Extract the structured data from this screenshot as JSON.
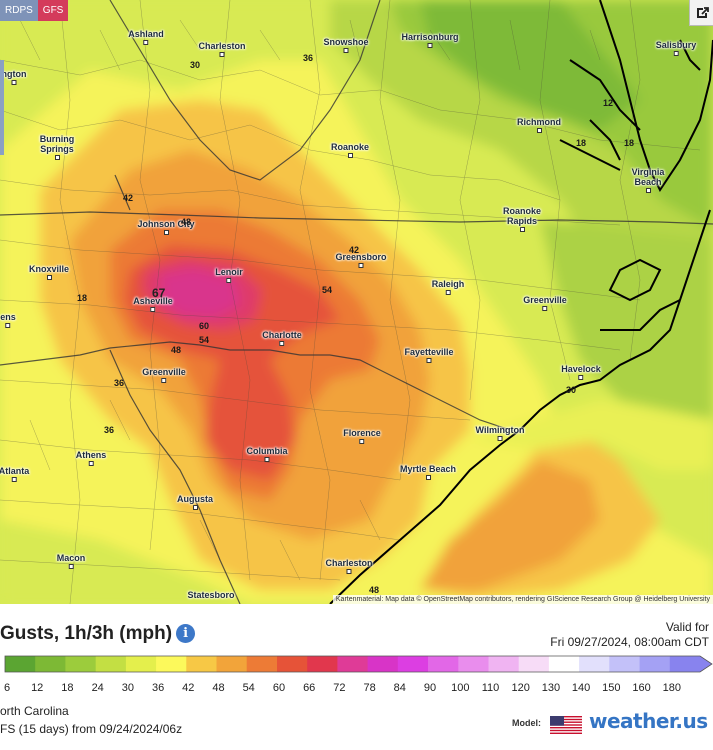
{
  "model_tabs": [
    {
      "label": "RDPS",
      "color": "#7e93b8"
    },
    {
      "label": "GFS",
      "color": "#d43b5b",
      "active": true
    }
  ],
  "share_icon": "share-arrow-icon",
  "attribution": "Kartenmaterial: Map data © OpenStreetMap contributors, rendering GIScience Research Group @ Heidelberg University",
  "cities": [
    {
      "key": "ashland",
      "label": "Ashland"
    },
    {
      "key": "charleston_wv",
      "label": "Charleston"
    },
    {
      "key": "snowshoe",
      "label": "Snowshoe"
    },
    {
      "key": "harrisonburg",
      "label": "Harrisonburg"
    },
    {
      "key": "salisbury",
      "label": "Salisbury"
    },
    {
      "key": "lexington",
      "label": "ngton"
    },
    {
      "key": "burning_springs",
      "label": "Burning Springs"
    },
    {
      "key": "roanoke",
      "label": "Roanoke"
    },
    {
      "key": "richmond",
      "label": "Richmond"
    },
    {
      "key": "virginia_beach",
      "label": "Virginia Beach"
    },
    {
      "key": "johnson_city",
      "label": "Johnson City"
    },
    {
      "key": "roanoke_rapids",
      "label": "Roanoke Rapids"
    },
    {
      "key": "knoxville",
      "label": "Knoxville"
    },
    {
      "key": "greensboro",
      "label": "Greensboro"
    },
    {
      "key": "lenoir",
      "label": "Lenoir"
    },
    {
      "key": "raleigh",
      "label": "Raleigh"
    },
    {
      "key": "asheville",
      "label": "Asheville"
    },
    {
      "key": "greenville_nc",
      "label": "Greenville"
    },
    {
      "key": "ens",
      "label": "ens"
    },
    {
      "key": "charlotte",
      "label": "Charlotte"
    },
    {
      "key": "fayetteville",
      "label": "Fayetteville"
    },
    {
      "key": "havelock",
      "label": "Havelock"
    },
    {
      "key": "greenville_sc",
      "label": "Greenville"
    },
    {
      "key": "wilmington",
      "label": "Wilmington"
    },
    {
      "key": "florence",
      "label": "Florence"
    },
    {
      "key": "athens",
      "label": "Athens"
    },
    {
      "key": "columbia",
      "label": "Columbia"
    },
    {
      "key": "atlanta",
      "label": "Atlanta"
    },
    {
      "key": "myrtle_beach",
      "label": "Myrtle Beach"
    },
    {
      "key": "augusta",
      "label": "Augusta"
    },
    {
      "key": "macon",
      "label": "Macon"
    },
    {
      "key": "charleston_sc",
      "label": "Charleston"
    },
    {
      "key": "statesboro",
      "label": "Statesboro"
    }
  ],
  "contour_labels": [
    "30",
    "36",
    "42",
    "48",
    "42",
    "54",
    "18",
    "60",
    "54",
    "48",
    "36",
    "36",
    "18",
    "12",
    "18",
    "67",
    "30",
    "48"
  ],
  "legend": {
    "title": "Gusts, 1h/3h (mph)",
    "info_icon": "info-icon",
    "valid_for": "Valid for",
    "valid_time": "Fri 09/27/2024, 08:00am CDT",
    "scale": [
      {
        "label": "6",
        "color": "#5ba532"
      },
      {
        "label": "12",
        "color": "#7db935"
      },
      {
        "label": "18",
        "color": "#9ccc3c"
      },
      {
        "label": "24",
        "color": "#c3df43"
      },
      {
        "label": "30",
        "color": "#e4ef4c"
      },
      {
        "label": "36",
        "color": "#fcf95b"
      },
      {
        "label": "42",
        "color": "#f7c845"
      },
      {
        "label": "48",
        "color": "#f2a43a"
      },
      {
        "label": "54",
        "color": "#ed7b36"
      },
      {
        "label": "60",
        "color": "#e65338"
      },
      {
        "label": "66",
        "color": "#e1374d"
      },
      {
        "label": "72",
        "color": "#df3b97"
      },
      {
        "label": "78",
        "color": "#d834c7"
      },
      {
        "label": "84",
        "color": "#dc3ee2"
      },
      {
        "label": "90",
        "color": "#e267e7"
      },
      {
        "label": "100",
        "color": "#e98ded"
      },
      {
        "label": "110",
        "color": "#f0b4f2"
      },
      {
        "label": "120",
        "color": "#f7dcf7"
      },
      {
        "label": "130",
        "color": "#ffffff"
      },
      {
        "label": "140",
        "color": "#e2e0fc"
      },
      {
        "label": "150",
        "color": "#c3c1f9"
      },
      {
        "label": "160",
        "color": "#a4a1f4"
      },
      {
        "label": "180",
        "color": "#8883ee"
      }
    ],
    "region": "orth Carolina",
    "run": "FS (15 days) from 09/24/2024/06z",
    "model_label": "Model:",
    "flag_icon": "us-flag-icon",
    "brand": "weather.us"
  }
}
